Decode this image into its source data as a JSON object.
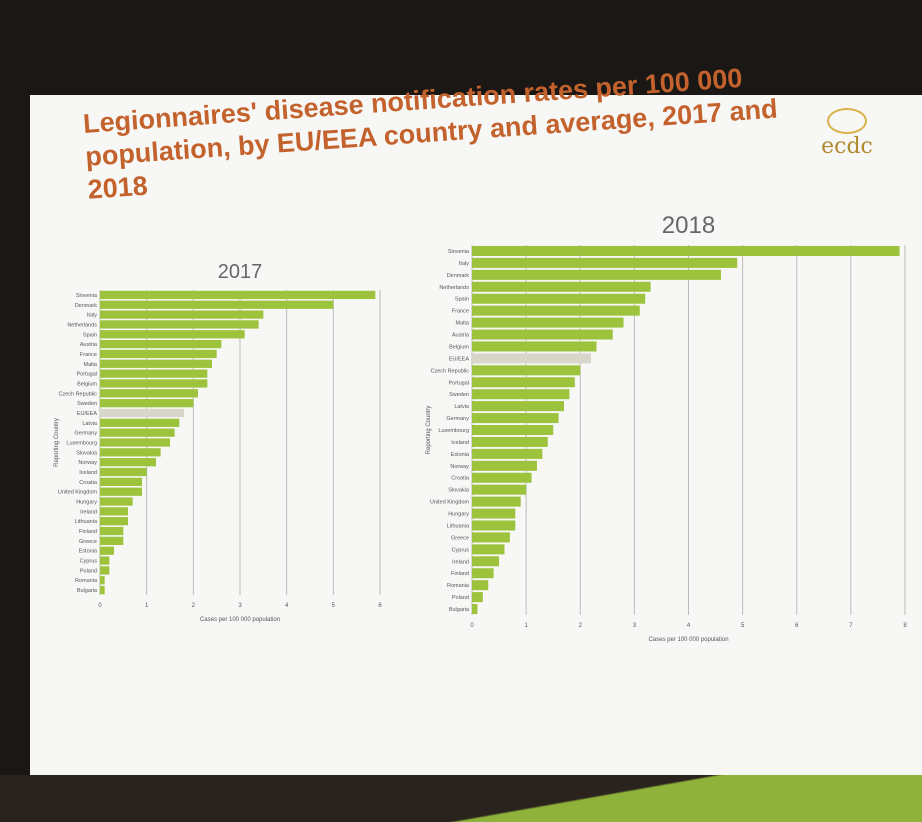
{
  "title": "Legionnaires' disease notification rates per 100 000 population, by EU/EEA country and average, 2017 and 2018",
  "logo": "ecdc",
  "chart_data": [
    {
      "type": "barh",
      "title": "2017",
      "xlabel": "Cases per 100 000 population",
      "ylabel": "Reporting Country",
      "categories": [
        "Slovenia",
        "Denmark",
        "Italy",
        "Netherlands",
        "Spain",
        "Austria",
        "France",
        "Malta",
        "Portugal",
        "Belgium",
        "Czech Republic",
        "Sweden",
        "EU/EEA",
        "Latvia",
        "Germany",
        "Luxembourg",
        "Slovakia",
        "Norway",
        "Iceland",
        "Croatia",
        "United Kingdom",
        "Hungary",
        "Ireland",
        "Lithuania",
        "Finland",
        "Greece",
        "Estonia",
        "Cyprus",
        "Poland",
        "Romania",
        "Bulgaria"
      ],
      "values": [
        5.9,
        5.0,
        3.5,
        3.4,
        3.1,
        2.6,
        2.5,
        2.4,
        2.3,
        2.3,
        2.1,
        2.0,
        1.8,
        1.7,
        1.6,
        1.5,
        1.3,
        1.2,
        1.0,
        0.9,
        0.9,
        0.7,
        0.6,
        0.6,
        0.5,
        0.5,
        0.3,
        0.2,
        0.2,
        0.1,
        0.1
      ],
      "colors": [
        "#9cc33b",
        "#9cc33b",
        "#9cc33b",
        "#9cc33b",
        "#9cc33b",
        "#9cc33b",
        "#9cc33b",
        "#9cc33b",
        "#9cc33b",
        "#9cc33b",
        "#9cc33b",
        "#9cc33b",
        "#d8d5cb",
        "#9cc33b",
        "#9cc33b",
        "#9cc33b",
        "#9cc33b",
        "#9cc33b",
        "#9cc33b",
        "#9cc33b",
        "#9cc33b",
        "#9cc33b",
        "#9cc33b",
        "#9cc33b",
        "#9cc33b",
        "#9cc33b",
        "#9cc33b",
        "#9cc33b",
        "#9cc33b",
        "#9cc33b",
        "#9cc33b"
      ],
      "xlim": [
        0,
        6
      ],
      "xticks": [
        0,
        1,
        2,
        3,
        4,
        5,
        6
      ],
      "grid": true
    },
    {
      "type": "barh",
      "title": "2018",
      "xlabel": "Cases per 100 000 population",
      "ylabel": "Reporting Country",
      "categories": [
        "Slovenia",
        "Italy",
        "Denmark",
        "Netherlands",
        "Spain",
        "France",
        "Malta",
        "Austria",
        "Belgium",
        "EU/EEA",
        "Czech Republic",
        "Portugal",
        "Sweden",
        "Latvia",
        "Germany",
        "Luxembourg",
        "Iceland",
        "Estonia",
        "Norway",
        "Croatia",
        "Slovakia",
        "United Kingdom",
        "Hungary",
        "Lithuania",
        "Greece",
        "Cyprus",
        "Ireland",
        "Finland",
        "Romania",
        "Poland",
        "Bulgaria"
      ],
      "values": [
        7.9,
        4.9,
        4.6,
        3.3,
        3.2,
        3.1,
        2.8,
        2.6,
        2.3,
        2.2,
        2.0,
        1.9,
        1.8,
        1.7,
        1.6,
        1.5,
        1.4,
        1.3,
        1.2,
        1.1,
        1.0,
        0.9,
        0.8,
        0.8,
        0.7,
        0.6,
        0.5,
        0.4,
        0.3,
        0.2,
        0.1
      ],
      "colors": [
        "#9cc33b",
        "#9cc33b",
        "#9cc33b",
        "#9cc33b",
        "#9cc33b",
        "#9cc33b",
        "#9cc33b",
        "#9cc33b",
        "#9cc33b",
        "#d8d5cb",
        "#9cc33b",
        "#9cc33b",
        "#9cc33b",
        "#9cc33b",
        "#9cc33b",
        "#9cc33b",
        "#9cc33b",
        "#9cc33b",
        "#9cc33b",
        "#9cc33b",
        "#9cc33b",
        "#9cc33b",
        "#9cc33b",
        "#9cc33b",
        "#9cc33b",
        "#9cc33b",
        "#9cc33b",
        "#9cc33b",
        "#9cc33b",
        "#9cc33b",
        "#9cc33b"
      ],
      "xlim": [
        0,
        8
      ],
      "xticks": [
        0,
        1,
        2,
        3,
        4,
        5,
        6,
        7,
        8
      ],
      "grid": true
    }
  ]
}
